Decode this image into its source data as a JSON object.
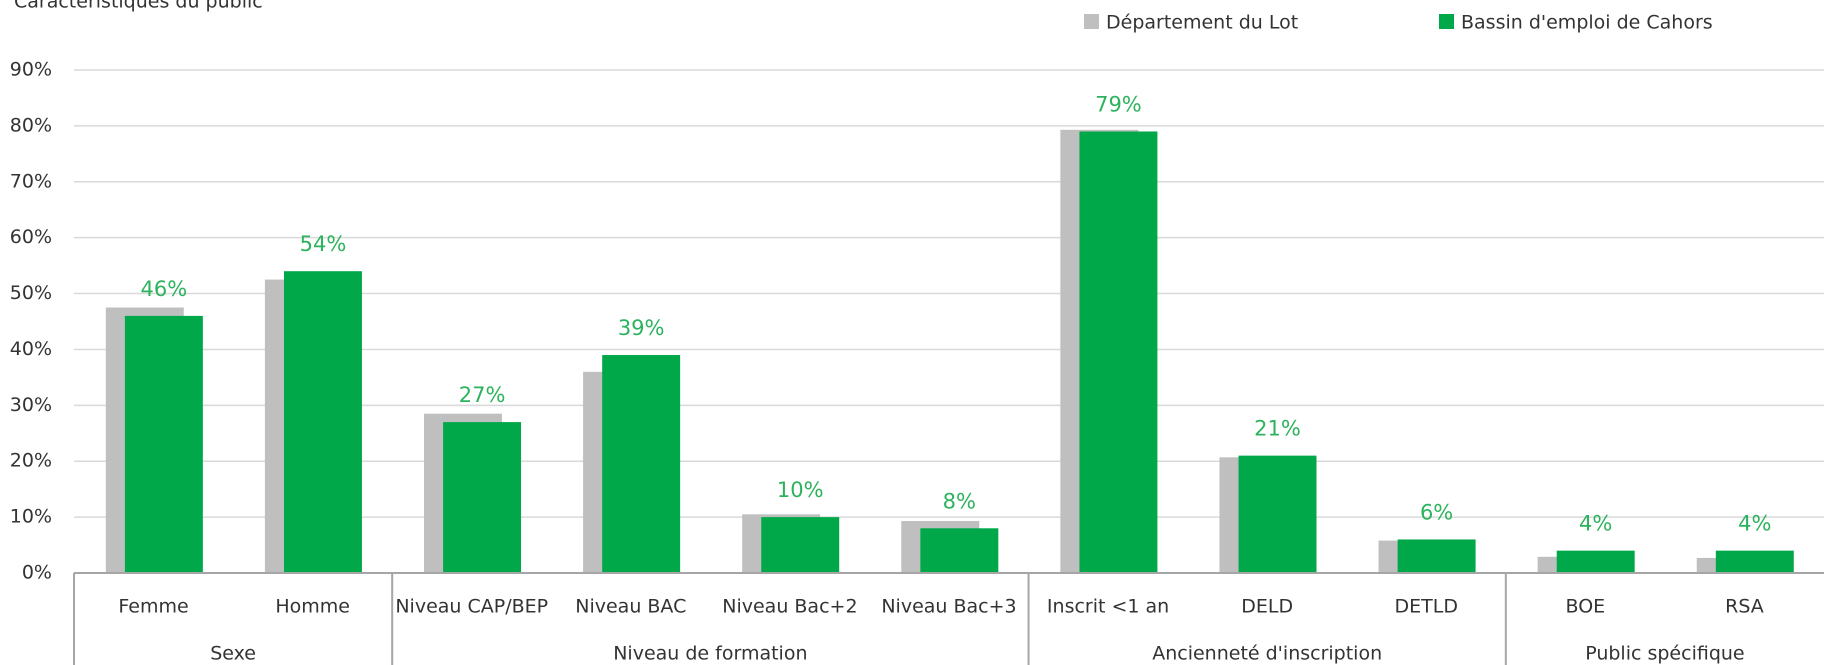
{
  "chart_data": {
    "type": "bar",
    "title": "Caractéristiques du public",
    "categories": [
      "Femme",
      "Homme",
      "Niveau CAP/BEP",
      "Niveau BAC",
      "Niveau Bac+2",
      "Niveau Bac+3",
      "Inscrit <1 an",
      "DELD",
      "DETLD",
      "BOE",
      "RSA"
    ],
    "category_groups": [
      "Sexe",
      null,
      "Niveau de formation",
      null,
      null,
      null,
      "Ancienneté d'inscription",
      null,
      null,
      "Public spécifique",
      null
    ],
    "series": [
      {
        "name": "Département du Lot",
        "color": "#bfbfbf",
        "values": [
          47.5,
          52.5,
          28.5,
          36,
          10.5,
          9.3,
          79.3,
          20.7,
          5.8,
          2.9,
          2.7
        ]
      },
      {
        "name": "Bassin d'emploi de Cahors",
        "color": "#00a84a",
        "values": [
          46,
          54,
          27,
          39,
          10,
          8,
          79,
          21,
          6,
          4,
          4
        ],
        "value_labels": [
          "46%",
          "54%",
          "27%",
          "39%",
          "10%",
          "8%",
          "79%",
          "21%",
          "6%",
          "4%",
          "4%"
        ],
        "label_color": "#2db35d"
      }
    ],
    "ylim": [
      0,
      90
    ],
    "yticks": [
      {
        "value": 0,
        "label": "0%"
      },
      {
        "value": 10,
        "label": "10%"
      },
      {
        "value": 20,
        "label": "20%"
      },
      {
        "value": 30,
        "label": "30%"
      },
      {
        "value": 40,
        "label": "40%"
      },
      {
        "value": 50,
        "label": "50%"
      },
      {
        "value": 60,
        "label": "60%"
      },
      {
        "value": 70,
        "label": "70%"
      },
      {
        "value": 80,
        "label": "80%"
      },
      {
        "value": 90,
        "label": "90%"
      }
    ],
    "grid": true,
    "legend": "top-right"
  }
}
